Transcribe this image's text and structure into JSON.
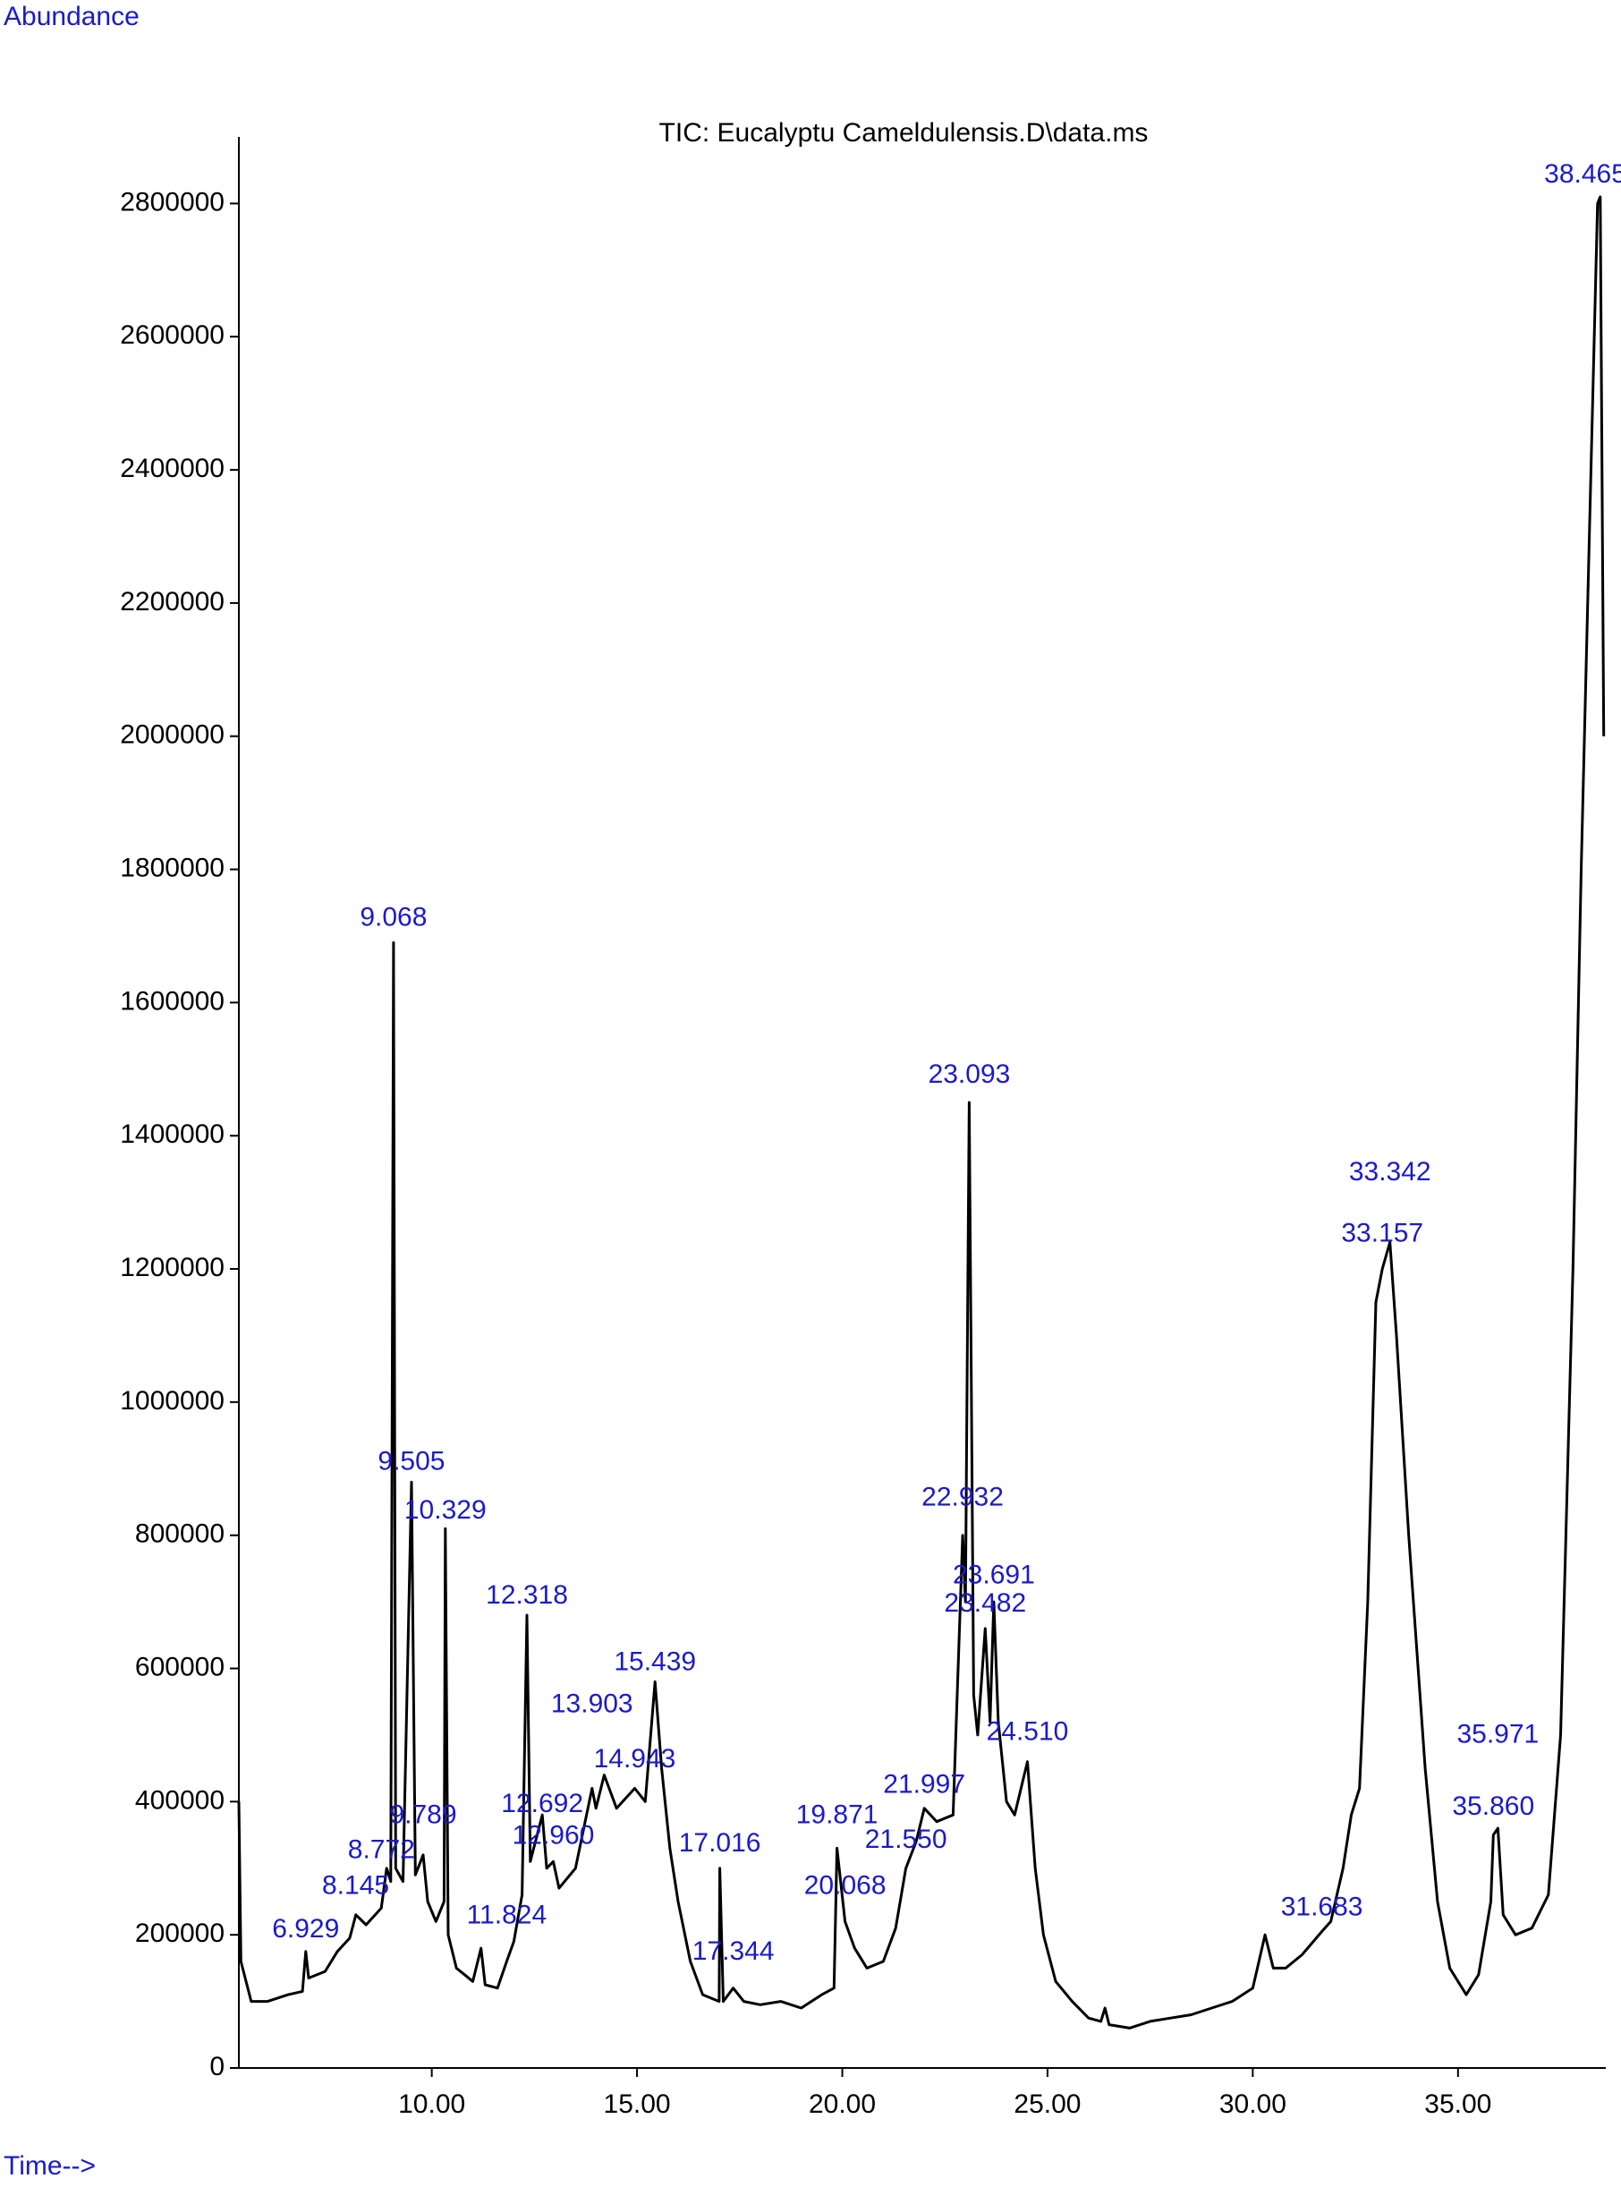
{
  "chart_data": {
    "type": "line",
    "title": "TIC: Eucalyptu Cameldulensis.D\\data.ms",
    "y_label": "Abundance",
    "x_label": "Time-->",
    "xlim": [
      5.3,
      38.6
    ],
    "ylim": [
      0,
      2900000
    ],
    "xticks": [
      {
        "value": 10,
        "label": "10.00"
      },
      {
        "value": 15,
        "label": "15.00"
      },
      {
        "value": 20,
        "label": "20.00"
      },
      {
        "value": 25,
        "label": "25.00"
      },
      {
        "value": 30,
        "label": "30.00"
      },
      {
        "value": 35,
        "label": "35.00"
      }
    ],
    "yticks": [
      0,
      200000,
      400000,
      600000,
      800000,
      1000000,
      1200000,
      1400000,
      1600000,
      1800000,
      2000000,
      2200000,
      2400000,
      2600000,
      2800000
    ],
    "grid": false,
    "series": [
      {
        "name": "TIC",
        "color": "#000000",
        "x": [
          5.3,
          5.35,
          5.6,
          6.0,
          6.5,
          6.85,
          6.93,
          7.0,
          7.4,
          7.7,
          8.0,
          8.15,
          8.4,
          8.77,
          8.9,
          9.0,
          9.068,
          9.12,
          9.3,
          9.505,
          9.6,
          9.789,
          9.9,
          10.1,
          10.3,
          10.329,
          10.4,
          10.6,
          10.8,
          11.0,
          11.2,
          11.3,
          11.6,
          11.824,
          12.0,
          12.2,
          12.318,
          12.4,
          12.692,
          12.8,
          12.96,
          13.1,
          13.5,
          13.903,
          14.0,
          14.2,
          14.5,
          14.943,
          15.2,
          15.439,
          15.6,
          15.8,
          16.0,
          16.3,
          16.6,
          17.0,
          17.016,
          17.1,
          17.344,
          17.6,
          18.0,
          18.5,
          19.0,
          19.5,
          19.8,
          19.871,
          20.068,
          20.3,
          20.6,
          21.0,
          21.3,
          21.55,
          21.8,
          21.997,
          22.3,
          22.7,
          22.932,
          23.0,
          23.093,
          23.2,
          23.3,
          23.482,
          23.6,
          23.691,
          23.8,
          24.0,
          24.2,
          24.51,
          24.7,
          24.9,
          25.2,
          25.6,
          26.0,
          26.3,
          26.4,
          26.5,
          27.0,
          27.5,
          28.0,
          28.5,
          29.0,
          29.5,
          30.0,
          30.3,
          30.5,
          30.8,
          31.2,
          31.683,
          31.9,
          32.2,
          32.4,
          32.6,
          32.8,
          33.0,
          33.157,
          33.342,
          33.5,
          33.8,
          34.2,
          34.5,
          34.8,
          35.2,
          35.5,
          35.8,
          35.86,
          35.971,
          36.1,
          36.4,
          36.8,
          37.2,
          37.5,
          37.8,
          38.0,
          38.2,
          38.4,
          38.465,
          38.55
        ],
        "values": [
          400000,
          160000,
          100000,
          100000,
          110000,
          115000,
          175000,
          135000,
          145000,
          175000,
          195000,
          230000,
          215000,
          240000,
          300000,
          280000,
          1690000,
          300000,
          280000,
          880000,
          290000,
          320000,
          250000,
          220000,
          250000,
          810000,
          200000,
          150000,
          140000,
          130000,
          180000,
          125000,
          120000,
          160000,
          190000,
          260000,
          680000,
          310000,
          380000,
          300000,
          310000,
          270000,
          300000,
          420000,
          390000,
          440000,
          390000,
          420000,
          400000,
          580000,
          450000,
          330000,
          250000,
          160000,
          110000,
          100000,
          300000,
          100000,
          120000,
          100000,
          95000,
          100000,
          90000,
          110000,
          120000,
          330000,
          220000,
          180000,
          150000,
          160000,
          210000,
          300000,
          340000,
          390000,
          370000,
          380000,
          800000,
          700000,
          1450000,
          560000,
          500000,
          660000,
          520000,
          700000,
          520000,
          400000,
          380000,
          460000,
          300000,
          200000,
          130000,
          100000,
          75000,
          70000,
          90000,
          65000,
          60000,
          70000,
          75000,
          80000,
          90000,
          100000,
          120000,
          200000,
          150000,
          150000,
          170000,
          205000,
          220000,
          300000,
          380000,
          420000,
          700000,
          1150000,
          1200000,
          1240000,
          1100000,
          800000,
          450000,
          250000,
          150000,
          110000,
          140000,
          250000,
          350000,
          360000,
          230000,
          200000,
          210000,
          260000,
          500000,
          1200000,
          1800000,
          2300000,
          2800000,
          2810000,
          2000000
        ]
      }
    ],
    "annotations": [
      {
        "text": "6.929",
        "x": 6.929,
        "y": 207000
      },
      {
        "text": "8.145",
        "x": 8.145,
        "y": 272000
      },
      {
        "text": "8.772",
        "x": 8.772,
        "y": 326000
      },
      {
        "text": "9.068",
        "x": 9.068,
        "y": 1726000
      },
      {
        "text": "9.505",
        "x": 9.505,
        "y": 909000
      },
      {
        "text": "9.789",
        "x": 9.789,
        "y": 378000
      },
      {
        "text": "10.329",
        "x": 10.329,
        "y": 836000
      },
      {
        "text": "11.824",
        "x": 11.824,
        "y": 228000
      },
      {
        "text": "12.318",
        "x": 12.318,
        "y": 708000
      },
      {
        "text": "12.692",
        "x": 12.692,
        "y": 395000
      },
      {
        "text": "12.960",
        "x": 12.96,
        "y": 347000
      },
      {
        "text": "13.903",
        "x": 13.903,
        "y": 545000
      },
      {
        "text": "14.943",
        "x": 14.943,
        "y": 462000
      },
      {
        "text": "15.439",
        "x": 15.439,
        "y": 608000
      },
      {
        "text": "17.016",
        "x": 17.016,
        "y": 336000
      },
      {
        "text": "17.344",
        "x": 17.344,
        "y": 173000
      },
      {
        "text": "19.871",
        "x": 19.871,
        "y": 378000
      },
      {
        "text": "20.068",
        "x": 20.068,
        "y": 272000
      },
      {
        "text": "21.550",
        "x": 21.55,
        "y": 341000
      },
      {
        "text": "21.997",
        "x": 21.997,
        "y": 424000
      },
      {
        "text": "22.932",
        "x": 22.932,
        "y": 855000
      },
      {
        "text": "23.093",
        "x": 23.093,
        "y": 1490000
      },
      {
        "text": "23.482",
        "x": 23.482,
        "y": 696000
      },
      {
        "text": "23.691",
        "x": 23.691,
        "y": 738000
      },
      {
        "text": "24.510",
        "x": 24.51,
        "y": 503000
      },
      {
        "text": "31.683",
        "x": 31.683,
        "y": 240000
      },
      {
        "text": "33.157",
        "x": 33.157,
        "y": 1252000
      },
      {
        "text": "33.342",
        "x": 33.342,
        "y": 1344000
      },
      {
        "text": "35.860",
        "x": 35.86,
        "y": 391000
      },
      {
        "text": "35.971",
        "x": 35.971,
        "y": 499000
      },
      {
        "text": "38.465",
        "x": 38.1,
        "y": 2842000
      }
    ]
  }
}
